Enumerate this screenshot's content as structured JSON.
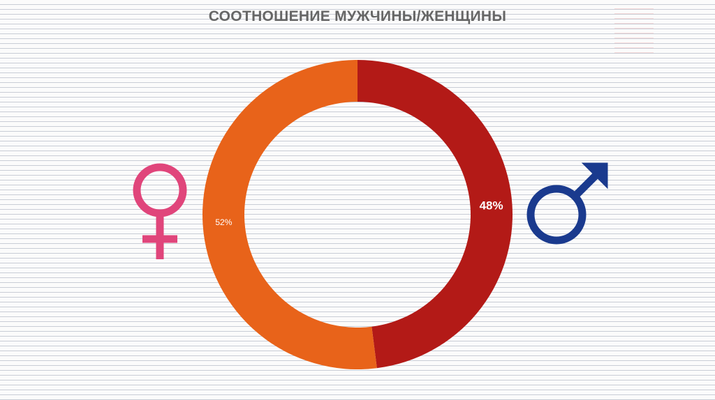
{
  "title": "СООТНОШЕНИЕ МУЖЧИНЫ/ЖЕНЩИНЫ",
  "icons": {
    "female": "female-symbol-icon",
    "male": "male-symbol-icon"
  },
  "colors": {
    "female_symbol": "#e0457b",
    "male_symbol": "#1a3a8e",
    "title": "#666666",
    "background_lines": "#c9cdd6"
  },
  "chart_data": {
    "type": "pie",
    "variant": "donut",
    "title": "СООТНОШЕНИЕ МУЖЧИНЫ/ЖЕНЩИНЫ",
    "start": "12 o'clock, clockwise",
    "slices": [
      {
        "value": 48,
        "label": "48%",
        "color": "#b31a17"
      },
      {
        "value": 52,
        "label": "52%",
        "color": "#e8631a"
      }
    ],
    "legend": "none"
  }
}
